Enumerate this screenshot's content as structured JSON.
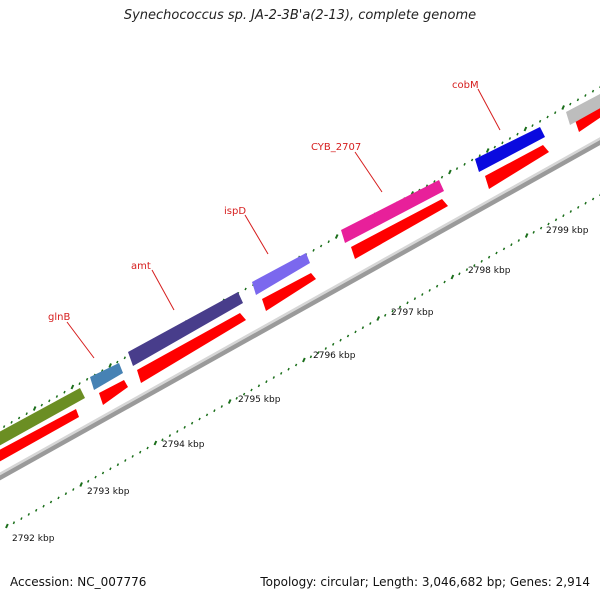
{
  "title": "Synechococcus sp. JA-2-3B'a(2-13), complete genome",
  "accession": "Accession: NC_007776",
  "summary": "Topology: circular; Length: 3,046,682 bp; Genes: 2,914",
  "ticks": [
    {
      "label": "2792 kbp"
    },
    {
      "label": "2793 kbp"
    },
    {
      "label": "2794 kbp"
    },
    {
      "label": "2795 kbp"
    },
    {
      "label": "2796 kbp"
    },
    {
      "label": "2797 kbp"
    },
    {
      "label": "2798 kbp"
    },
    {
      "label": "2799 kbp"
    }
  ],
  "genes": [
    {
      "name": "",
      "color": "#6b8e23"
    },
    {
      "name": "glnB",
      "color": "#4682b4"
    },
    {
      "name": "amt",
      "color": "#483d8b"
    },
    {
      "name": "ispD",
      "color": "#7b68ee"
    },
    {
      "name": "CYB_2707",
      "color": "#e8209a"
    },
    {
      "name": "cobM",
      "color": "#0a0adf"
    },
    {
      "name": "",
      "color": "#bdbdbd"
    }
  ],
  "colors": {
    "cds": "#ff0000",
    "backbone": "#8a8a8a",
    "tick": "#1a6e1a",
    "label": "#d61e1e"
  }
}
